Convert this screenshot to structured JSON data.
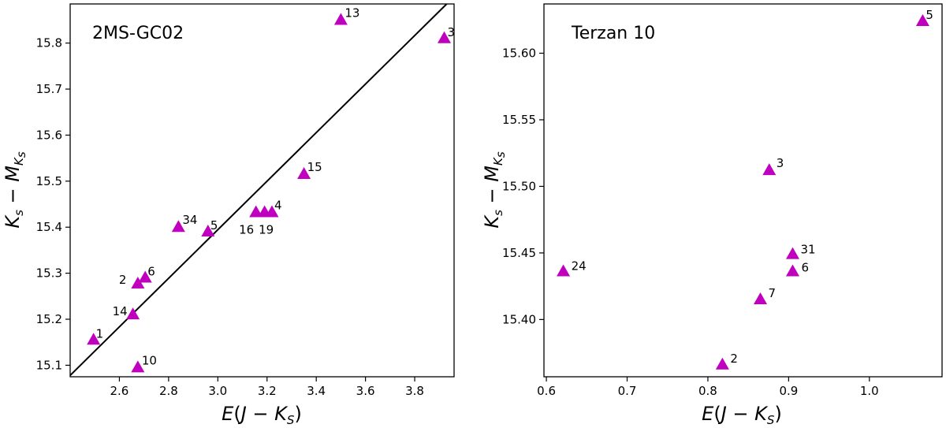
{
  "chart_data": [
    {
      "type": "scatter",
      "title": "2MS-GC02",
      "xlabel": "E(J − K_S)",
      "ylabel": "K_s − M_{K_s}",
      "xlim": [
        2.4,
        3.96
      ],
      "ylim": [
        15.075,
        15.885
      ],
      "xticks": [
        2.6,
        2.8,
        3.0,
        3.2,
        3.4,
        3.6,
        3.8
      ],
      "xtick_labels": [
        "2.6",
        "2.8",
        "3.0",
        "3.2",
        "3.4",
        "3.6",
        "3.8"
      ],
      "yticks": [
        15.1,
        15.2,
        15.3,
        15.4,
        15.5,
        15.6,
        15.7,
        15.8
      ],
      "ytick_labels": [
        "15.1",
        "15.2",
        "15.3",
        "15.4",
        "15.5",
        "15.6",
        "15.7",
        "15.8"
      ],
      "marker": "triangle",
      "marker_color": "#bf00bf",
      "points": [
        {
          "label": "13",
          "x": 3.5,
          "y": 15.85
        },
        {
          "label": "3",
          "x": 3.92,
          "y": 15.81
        },
        {
          "label": "15",
          "x": 3.35,
          "y": 15.515
        },
        {
          "label": "4",
          "x": 3.22,
          "y": 15.432
        },
        {
          "label": "19",
          "x": 3.19,
          "y": 15.432
        },
        {
          "label": "16",
          "x": 3.155,
          "y": 15.432
        },
        {
          "label": "34",
          "x": 2.84,
          "y": 15.4
        },
        {
          "label": "5",
          "x": 2.96,
          "y": 15.39
        },
        {
          "label": "6",
          "x": 2.705,
          "y": 15.29
        },
        {
          "label": "2",
          "x": 2.675,
          "y": 15.277
        },
        {
          "label": "14",
          "x": 2.655,
          "y": 15.21
        },
        {
          "label": "1",
          "x": 2.495,
          "y": 15.155
        },
        {
          "label": "10",
          "x": 2.675,
          "y": 15.095
        }
      ],
      "fit_line": {
        "x": [
          2.4,
          3.93
        ],
        "y": [
          15.078,
          15.885
        ],
        "color": "#000000"
      }
    },
    {
      "type": "scatter",
      "title": "Terzan 10",
      "xlabel": "E(J − K_S)",
      "ylabel": "K_s − M_{K_s}",
      "xlim": [
        0.597,
        1.09
      ],
      "ylim": [
        15.357,
        15.637
      ],
      "xticks": [
        0.6,
        0.7,
        0.8,
        0.9,
        1.0
      ],
      "xtick_labels": [
        "0.6",
        "0.7",
        "0.8",
        "0.9",
        "1.0"
      ],
      "yticks": [
        15.4,
        15.45,
        15.5,
        15.55,
        15.6
      ],
      "ytick_labels": [
        "15.40",
        "15.45",
        "15.50",
        "15.55",
        "15.60"
      ],
      "marker": "triangle",
      "marker_color": "#bf00bf",
      "points": [
        {
          "label": "5",
          "x": 1.066,
          "y": 15.624
        },
        {
          "label": "3",
          "x": 0.876,
          "y": 15.512
        },
        {
          "label": "31",
          "x": 0.905,
          "y": 15.449
        },
        {
          "label": "6",
          "x": 0.905,
          "y": 15.436
        },
        {
          "label": "24",
          "x": 0.621,
          "y": 15.436
        },
        {
          "label": "7",
          "x": 0.865,
          "y": 15.415
        },
        {
          "label": "2",
          "x": 0.818,
          "y": 15.366
        }
      ]
    }
  ]
}
